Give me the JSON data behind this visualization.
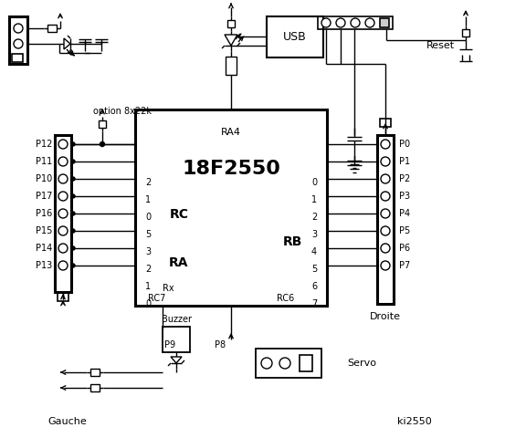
{
  "bg_color": "#ffffff",
  "line_color": "#000000",
  "chip_label": "18F2550",
  "chip_sublabel": "RA4",
  "rc_label": "RC",
  "ra_label": "RA",
  "rb_label": "RB",
  "rc_pins": [
    "2",
    "1",
    "0",
    "5",
    "3",
    "2",
    "1",
    "0"
  ],
  "rb_pins": [
    "0",
    "1",
    "2",
    "3",
    "4",
    "5",
    "6",
    "7"
  ],
  "left_labels": [
    "P12",
    "P11",
    "P10",
    "P17",
    "P16",
    "P15",
    "P14",
    "P13"
  ],
  "right_labels": [
    "P0",
    "P1",
    "P2",
    "P3",
    "P4",
    "P5",
    "P6",
    "P7"
  ],
  "option_label": "option 8x22k",
  "gauche_label": "Gauche",
  "droite_label": "Droite",
  "servo_label": "Servo",
  "buzzer_label": "Buzzer",
  "usb_label": "USB",
  "reset_label": "Reset",
  "ki_label": "ki2550",
  "p9_label": "P9",
  "p8_label": "P8",
  "rc6_label": "RC6",
  "rc7_label": "RC7",
  "rx_label": "Rx"
}
